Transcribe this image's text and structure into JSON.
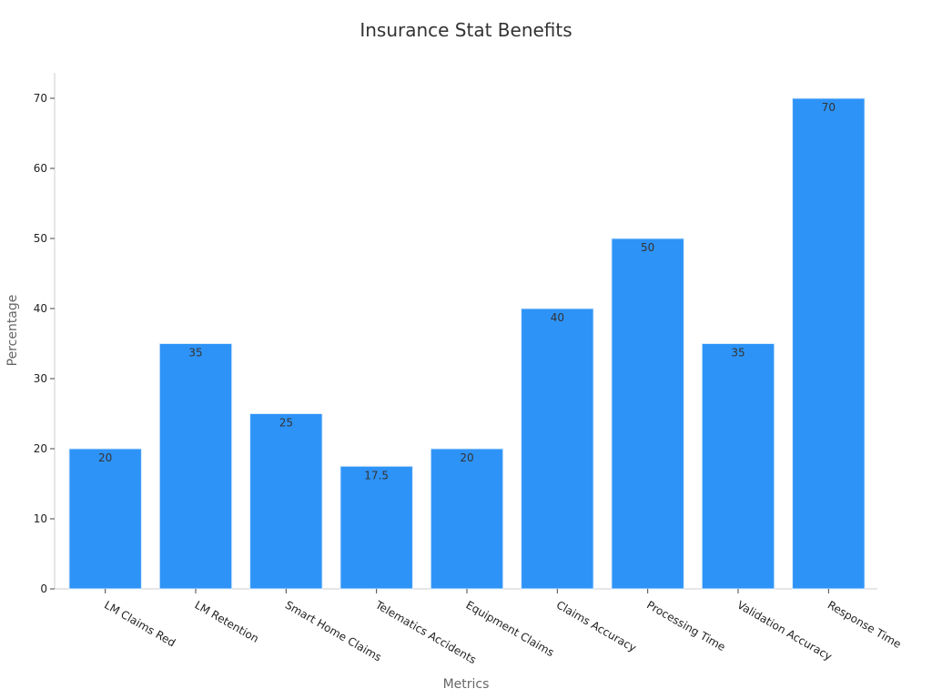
{
  "chart_data": {
    "type": "bar",
    "title": "Insurance Stat Benefits",
    "xlabel": "Metrics",
    "ylabel": "Percentage",
    "categories": [
      "LM Claims Red",
      "LM Retention",
      "Smart Home Claims",
      "Telematics Accidents",
      "Equipment Claims",
      "Claims Accuracy",
      "Processing Time",
      "Validation Accuracy",
      "Response Time"
    ],
    "values": [
      20,
      35,
      25,
      17.5,
      20,
      40,
      50,
      35,
      70
    ],
    "data_labels": [
      "20",
      "35",
      "25",
      "17.5",
      "20",
      "40",
      "50",
      "35",
      "70"
    ],
    "ylim": [
      0,
      70
    ],
    "yticks": [
      0,
      10,
      20,
      30,
      40,
      50,
      60,
      70
    ],
    "grid": false,
    "legend": "none",
    "bar_color": "#2e93f7",
    "bar_border_color": "#d9ecfc"
  }
}
